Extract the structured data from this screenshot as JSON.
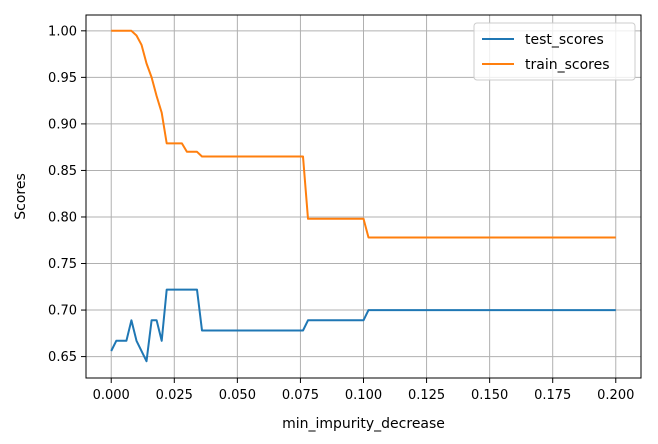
{
  "chart_data": {
    "type": "line",
    "title": "",
    "xlabel": "min_impurity_decrease",
    "ylabel": "Scores",
    "xlim": [
      -0.01,
      0.21
    ],
    "ylim": [
      0.627,
      1.017
    ],
    "xticks": [
      0.0,
      0.025,
      0.05,
      0.075,
      0.1,
      0.125,
      0.15,
      0.175,
      0.2
    ],
    "xtick_labels": [
      "0.000",
      "0.025",
      "0.050",
      "0.075",
      "0.100",
      "0.125",
      "0.150",
      "0.175",
      "0.200"
    ],
    "yticks": [
      0.65,
      0.7,
      0.75,
      0.8,
      0.85,
      0.9,
      0.95,
      1.0
    ],
    "ytick_labels": [
      "0.65",
      "0.70",
      "0.75",
      "0.80",
      "0.85",
      "0.90",
      "0.95",
      "1.00"
    ],
    "grid": true,
    "legend_position": "top-right",
    "series": [
      {
        "name": "test_scores",
        "color": "#1f77b4",
        "x": [
          0.0,
          0.002,
          0.006,
          0.008,
          0.01,
          0.014,
          0.016,
          0.018,
          0.02,
          0.022,
          0.024,
          0.026,
          0.028,
          0.03,
          0.032,
          0.034,
          0.036,
          0.04,
          0.05,
          0.06,
          0.07,
          0.076,
          0.078,
          0.08,
          0.09,
          0.1,
          0.102,
          0.104,
          0.12,
          0.15,
          0.18,
          0.2
        ],
        "y": [
          0.656,
          0.667,
          0.667,
          0.689,
          0.667,
          0.645,
          0.689,
          0.689,
          0.667,
          0.722,
          0.722,
          0.722,
          0.722,
          0.722,
          0.722,
          0.722,
          0.678,
          0.678,
          0.678,
          0.678,
          0.678,
          0.678,
          0.689,
          0.689,
          0.689,
          0.689,
          0.7,
          0.7,
          0.7,
          0.7,
          0.7,
          0.7
        ]
      },
      {
        "name": "train_scores",
        "color": "#ff7f0e",
        "x": [
          0.0,
          0.002,
          0.004,
          0.006,
          0.008,
          0.01,
          0.012,
          0.014,
          0.016,
          0.018,
          0.02,
          0.022,
          0.024,
          0.026,
          0.028,
          0.03,
          0.032,
          0.034,
          0.036,
          0.04,
          0.05,
          0.06,
          0.07,
          0.076,
          0.078,
          0.08,
          0.09,
          0.1,
          0.102,
          0.104,
          0.12,
          0.15,
          0.18,
          0.2
        ],
        "y": [
          1.0,
          1.0,
          1.0,
          1.0,
          1.0,
          0.995,
          0.985,
          0.965,
          0.95,
          0.93,
          0.912,
          0.879,
          0.879,
          0.879,
          0.879,
          0.87,
          0.87,
          0.87,
          0.865,
          0.865,
          0.865,
          0.865,
          0.865,
          0.865,
          0.798,
          0.798,
          0.798,
          0.798,
          0.778,
          0.778,
          0.778,
          0.778,
          0.778,
          0.778
        ]
      }
    ]
  }
}
